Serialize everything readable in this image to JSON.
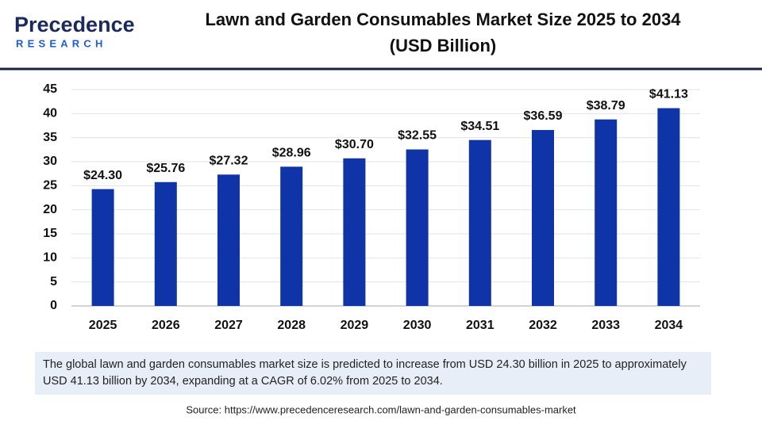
{
  "chart_data": {
    "type": "bar",
    "logo_name": "Precedence",
    "logo_tagline": "RESEARCH",
    "title": "Lawn and Garden Consumables Market Size 2025 to 2034",
    "subtitle": "(USD Billion)",
    "categories": [
      "2025",
      "2026",
      "2027",
      "2028",
      "2029",
      "2030",
      "2031",
      "2032",
      "2033",
      "2034"
    ],
    "values": [
      24.3,
      25.76,
      27.32,
      28.96,
      30.7,
      32.55,
      34.51,
      36.59,
      38.79,
      41.13
    ],
    "value_labels": [
      "$24.30",
      "$25.76",
      "$27.32",
      "$28.96",
      "$30.70",
      "$32.55",
      "$34.51",
      "$36.59",
      "$38.79",
      "$41.13"
    ],
    "color": "#0e34a8",
    "ylim": [
      0,
      45
    ],
    "yticks": [
      0,
      5,
      10,
      15,
      20,
      25,
      30,
      35,
      40,
      45
    ],
    "grid": true,
    "description": "The global lawn and garden consumables market size is predicted to increase from USD 24.30 billion in 2025 to approximately USD 41.13 billion by 2034, expanding at a CAGR of 6.02% from 2025 to 2034.",
    "source": "Source: https://www.precedenceresearch.com/lawn-and-garden-consumables-market"
  }
}
